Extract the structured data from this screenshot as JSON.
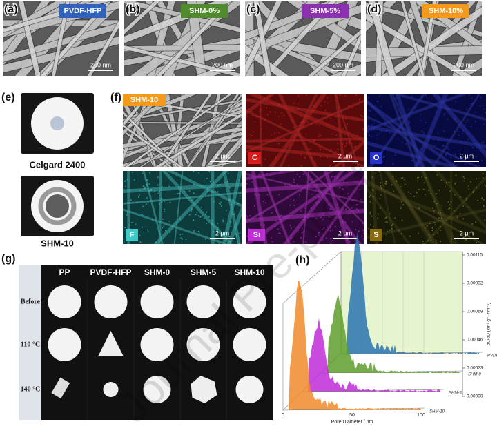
{
  "panels_top": [
    {
      "letter": "(a)",
      "sample": "PVDF-HFP",
      "scale": "200 nm"
    },
    {
      "letter": "(b)",
      "sample": "SHM-0%",
      "scale": "200 nm"
    },
    {
      "letter": "(c)",
      "sample": "SHM-5%",
      "scale": "200 nm"
    },
    {
      "letter": "(d)",
      "sample": "SHM-10%",
      "scale": "200 nm"
    }
  ],
  "panel_e": {
    "letter": "(e)",
    "captions": [
      "Celgard 2400",
      "SHM-10"
    ]
  },
  "panel_f": {
    "letter": "(f)",
    "tiles": [
      {
        "label": "SHM-10",
        "scale": "2 μm"
      },
      {
        "label": "C",
        "scale": "2 μm"
      },
      {
        "label": "O",
        "scale": "2 μm"
      },
      {
        "label": "F",
        "scale": "2 μm"
      },
      {
        "label": "Si",
        "scale": "2 μm"
      },
      {
        "label": "S",
        "scale": "2 μm"
      }
    ]
  },
  "panel_g": {
    "letter": "(g)",
    "columns": [
      "PP",
      "PVDF-HFP",
      "SHM-0",
      "SHM-5",
      "SHM-10"
    ],
    "rows": [
      "Before",
      "110 °C",
      "140 °C"
    ]
  },
  "panel_h": {
    "letter": "(h)",
    "y_label": "dV/dD (cm³ g⁻¹ nm⁻¹)",
    "y_ticks": [
      "0.00000",
      "0.00023",
      "0.00046",
      "0.00069",
      "0.00092",
      "0.00115"
    ],
    "x_label": "Pore Diameter / nm",
    "x_ticks": [
      "0",
      "50",
      "100"
    ],
    "series": [
      "PVDF-HFP",
      "SHM-0",
      "SHM-5",
      "SHM-10"
    ]
  },
  "watermark": "Journal Pre-proof"
}
